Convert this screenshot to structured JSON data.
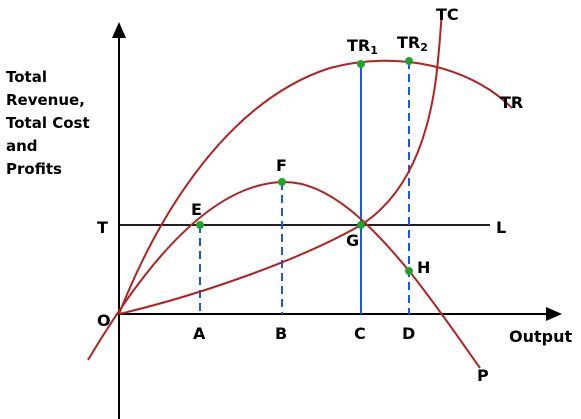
{
  "axis": {
    "y_label_lines": [
      "Total",
      "Revenue,",
      "Total Cost",
      "and",
      "Profits"
    ],
    "x_label": "Output",
    "origin": "O",
    "level_left": "T",
    "level_right": "L"
  },
  "x_ticks": [
    "A",
    "B",
    "C",
    "D"
  ],
  "curves": {
    "tc": "TC",
    "tr": "TR",
    "profit": "P"
  },
  "points": {
    "e": "E",
    "f": "F",
    "g": "G",
    "h": "H",
    "tr1_base": "TR",
    "tr1_sub": "1",
    "tr2_base": "TR",
    "tr2_sub": "2"
  },
  "colors": {
    "curve": "#b22222",
    "vertical_line": "#1a56e8",
    "point": "#22a32c",
    "axis": "#000000"
  }
}
